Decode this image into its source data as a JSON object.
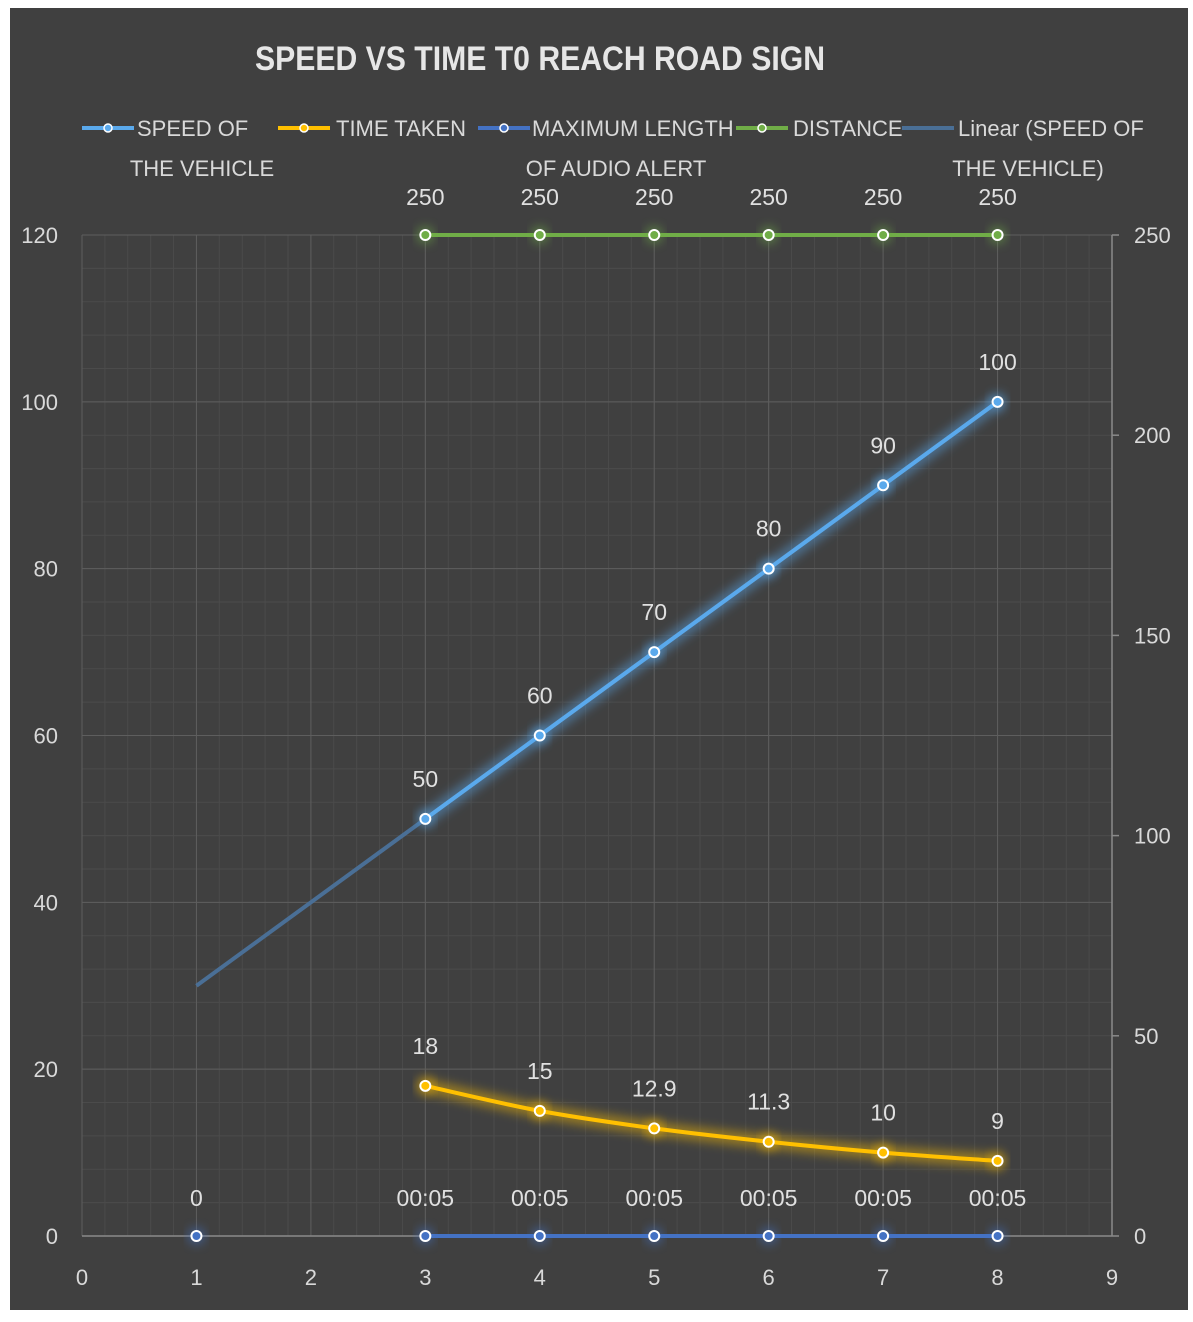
{
  "chart_data": {
    "type": "line",
    "title": "SPEED VS TIME T0 REACH ROAD SIGN",
    "x_ticks": [
      "0",
      "1",
      "2",
      "3",
      "4",
      "5",
      "6",
      "7",
      "8",
      "9"
    ],
    "xlim": [
      0,
      9
    ],
    "y_left_ticks": [
      "0",
      "20",
      "40",
      "60",
      "80",
      "100",
      "120"
    ],
    "ylim_left": [
      0,
      120
    ],
    "y_right_ticks": [
      "0",
      "50",
      "100",
      "150",
      "200",
      "250"
    ],
    "ylim_right": [
      0,
      250
    ],
    "grid": "major and minor",
    "legend_position": "top",
    "series": [
      {
        "name": "SPEED OF THE VEHICLE",
        "name_lines": [
          "SPEED OF",
          "THE VEHICLE"
        ],
        "axis": "left",
        "color": "#5aa9ec",
        "x": [
          3,
          4,
          5,
          6,
          7,
          8
        ],
        "values": [
          50,
          60,
          70,
          80,
          90,
          100
        ],
        "labels": [
          "50",
          "60",
          "70",
          "80",
          "90",
          "100"
        ]
      },
      {
        "name": "TIME TAKEN",
        "name_lines": [
          "TIME TAKEN"
        ],
        "axis": "left",
        "color": "#ffc000",
        "x": [
          3,
          4,
          5,
          6,
          7,
          8
        ],
        "values": [
          18,
          15,
          12.9,
          11.3,
          10,
          9
        ],
        "labels": [
          "18",
          "15",
          "12.9",
          "11.3",
          "10",
          "9"
        ]
      },
      {
        "name": "MAXIMUM LENGTH OF AUDIO ALERT",
        "name_lines": [
          "MAXIMUM LENGTH",
          "OF AUDIO ALERT"
        ],
        "axis": "left",
        "color": "#4472c4",
        "x": [
          1,
          3,
          4,
          5,
          6,
          7,
          8
        ],
        "values": [
          0,
          0,
          0,
          0,
          0,
          0,
          0
        ],
        "labels": [
          "0",
          "00:05",
          "00:05",
          "00:05",
          "00:05",
          "00:05",
          "00:05"
        ]
      },
      {
        "name": "DISTANCE",
        "name_lines": [
          "DISTANCE"
        ],
        "axis": "right",
        "color": "#70ad47",
        "x": [
          3,
          4,
          5,
          6,
          7,
          8
        ],
        "values": [
          250,
          250,
          250,
          250,
          250,
          250
        ],
        "labels": [
          "250",
          "250",
          "250",
          "250",
          "250",
          "250"
        ]
      }
    ],
    "trendline": {
      "name": "Linear (SPEED OF THE VEHICLE)",
      "name_lines": [
        "Linear (SPEED OF",
        "THE VEHICLE)"
      ],
      "type": "linear",
      "of_series": "SPEED OF THE VEHICLE",
      "color": "#4a6f96",
      "x_range": [
        1,
        8
      ]
    }
  }
}
